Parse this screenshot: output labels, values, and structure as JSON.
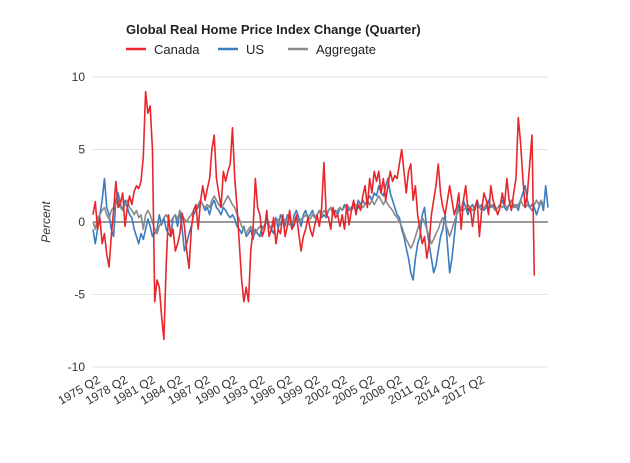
{
  "chart_data": {
    "type": "line",
    "title": "Global Real Home Price Index Change (Quarter)",
    "ylabel": "Percent",
    "xlabel": "",
    "ylim": [
      -10,
      10
    ],
    "yticks": [
      10,
      5,
      0,
      -5,
      -10
    ],
    "grid": true,
    "legend_position": "top-left",
    "x_start": "1975 Q2",
    "x_end": "2017 Q4",
    "xtick_labels": [
      "1975 Q2",
      "1978 Q2",
      "1981 Q2",
      "1984 Q2",
      "1987 Q2",
      "1990 Q2",
      "1993 Q2",
      "1996 Q2",
      "1999 Q2",
      "2002 Q2",
      "2005 Q2",
      "2008 Q2",
      "2011 Q2",
      "2014 Q2",
      "2017 Q2"
    ],
    "series": [
      {
        "name": "Canada",
        "color": "#e8262b",
        "values": [
          0.5,
          1.4,
          -0.5,
          0.3,
          -1.5,
          -0.8,
          -2.2,
          -3.1,
          -1.0,
          0.8,
          2.8,
          1.0,
          1.3,
          2.0,
          -0.3,
          1.0,
          1.8,
          1.2,
          2.1,
          2.5,
          2.3,
          2.8,
          4.5,
          9.0,
          7.5,
          8.0,
          5.0,
          -5.5,
          -4.0,
          -4.5,
          -6.5,
          -8.1,
          -3.0,
          0.5,
          -1.0,
          -0.5,
          -2.0,
          -1.5,
          -0.8,
          0.6,
          -0.3,
          -2.0,
          -3.2,
          -0.5,
          0.8,
          1.2,
          -0.5,
          1.4,
          2.5,
          1.5,
          2.3,
          3.0,
          5.0,
          6.0,
          3.0,
          2.0,
          1.0,
          3.5,
          2.8,
          3.5,
          4.0,
          6.5,
          3.0,
          1.0,
          -1.5,
          -4.0,
          -5.5,
          -4.5,
          -5.5,
          -2.0,
          -0.5,
          3.0,
          1.0,
          0.5,
          -1.0,
          -0.5,
          0.8,
          -1.0,
          -0.5,
          0.3,
          -1.5,
          -0.5,
          -0.8,
          0.5,
          -1.0,
          -0.3,
          0.8,
          -0.5,
          -0.2,
          0.5,
          -0.8,
          -2.0,
          -1.0,
          -0.5,
          0.3,
          -0.5,
          -1.0,
          -0.2,
          0.5,
          -0.3,
          1.0,
          4.1,
          0.5,
          0.3,
          -0.5,
          1.0,
          0.3,
          0.5,
          -0.3,
          0.5,
          -0.5,
          1.2,
          -0.2,
          0.8,
          1.5,
          0.5,
          1.2,
          0.8,
          1.8,
          2.5,
          1.0,
          3.0,
          2.0,
          3.5,
          2.8,
          3.5,
          2.0,
          3.0,
          1.5,
          2.5,
          3.5,
          2.8,
          3.2,
          3.0,
          4.0,
          5.0,
          3.5,
          2.0,
          3.5,
          4.0,
          1.5,
          2.5,
          0.5,
          -0.5,
          -1.5,
          -1.0,
          -2.5,
          -1.5,
          0.5,
          1.5,
          2.5,
          4.0,
          2.0,
          1.0,
          0.5,
          1.5,
          2.5,
          1.5,
          0.5,
          1.0,
          2.0,
          -0.5,
          1.5,
          2.5,
          0.8,
          1.0,
          -0.3,
          1.0,
          1.5,
          -1.0,
          0.8,
          2.0,
          1.5,
          0.5,
          2.5,
          1.5,
          1.0,
          0.5,
          1.0,
          2.0,
          1.2,
          3.0,
          1.5,
          0.8,
          2.0,
          3.0,
          7.2,
          5.5,
          3.0,
          1.0,
          2.0,
          4.0,
          6.0,
          -3.7
        ]
      },
      {
        "name": "US",
        "color": "#3a7cbf",
        "values": [
          -0.5,
          -1.5,
          -0.5,
          0.5,
          1.5,
          3.0,
          1.0,
          0.5,
          -0.5,
          -1.0,
          1.5,
          2.0,
          1.2,
          0.8,
          1.5,
          1.0,
          0.5,
          0.3,
          -0.5,
          -1.0,
          -1.5,
          -0.8,
          -1.2,
          -0.5,
          0.2,
          -0.3,
          -1.0,
          -0.8,
          -0.5,
          0.5,
          -0.2,
          0.3,
          -0.5,
          -0.8,
          -1.0,
          0.3,
          0.5,
          -0.3,
          0.8,
          -0.5,
          -2.0,
          -1.5,
          -0.8,
          -0.3,
          0.5,
          0.8,
          1.0,
          1.5,
          1.2,
          0.8,
          1.0,
          0.5,
          1.2,
          1.5,
          1.0,
          0.8,
          0.5,
          1.0,
          0.8,
          0.5,
          0.3,
          0.5,
          0.2,
          -0.3,
          -0.5,
          -0.8,
          -0.3,
          -1.0,
          -0.8,
          -0.5,
          -1.2,
          -0.5,
          -0.8,
          -1.0,
          -0.3,
          -0.5,
          0.3,
          -0.2,
          -0.5,
          -0.8,
          0.3,
          -0.5,
          0.5,
          0.2,
          -0.3,
          0.5,
          0.3,
          -0.5,
          0.5,
          0.8,
          0.3,
          -0.3,
          0.5,
          0.8,
          0.3,
          0.5,
          0.8,
          0.3,
          0.5,
          0.8,
          0.3,
          0.5,
          0.3,
          0.8,
          1.0,
          0.5,
          0.8,
          0.5,
          1.0,
          0.8,
          1.2,
          1.0,
          0.8,
          1.0,
          1.2,
          0.8,
          1.5,
          1.2,
          1.5,
          1.2,
          1.5,
          1.8,
          1.5,
          2.0,
          1.8,
          2.5,
          2.0,
          1.8,
          2.5,
          3.0,
          2.0,
          1.5,
          1.0,
          0.5,
          0.3,
          -0.5,
          -1.0,
          -1.8,
          -2.5,
          -3.5,
          -4.0,
          -2.5,
          -1.5,
          -1.0,
          0.5,
          1.0,
          -0.5,
          -1.5,
          -2.5,
          -3.5,
          -3.0,
          -2.0,
          -1.0,
          -0.5,
          0.5,
          -1.5,
          -3.5,
          -2.5,
          -1.0,
          0.5,
          1.2,
          0.8,
          1.5,
          1.0,
          0.5,
          1.0,
          1.2,
          0.8,
          1.5,
          1.0,
          1.2,
          0.8,
          1.0,
          1.5,
          1.0,
          1.2,
          0.8,
          1.0,
          1.2,
          1.5,
          1.0,
          0.8,
          1.2,
          1.5,
          1.0,
          1.2,
          0.8,
          1.5,
          2.0,
          2.5,
          1.5,
          1.0,
          1.2,
          1.0,
          0.5,
          1.0,
          1.5,
          0.8,
          2.5,
          1.0
        ]
      },
      {
        "name": "Aggregate",
        "color": "#8a8a8a",
        "values": [
          0.0,
          -0.5,
          0.3,
          0.5,
          0.8,
          1.0,
          0.5,
          0.2,
          0.8,
          1.0,
          1.2,
          1.5,
          1.0,
          0.8,
          1.2,
          1.5,
          1.0,
          0.8,
          0.5,
          0.8,
          0.3,
          0.5,
          -0.5,
          0.5,
          0.8,
          0.5,
          0.0,
          -0.5,
          -0.8,
          -0.3,
          0.0,
          0.3,
          0.5,
          0.2,
          0.0,
          0.3,
          0.5,
          0.2,
          0.8,
          0.5,
          0.2,
          0.0,
          0.3,
          0.5,
          0.8,
          1.0,
          1.2,
          1.5,
          1.2,
          1.0,
          1.2,
          1.0,
          1.5,
          1.8,
          1.5,
          1.2,
          1.0,
          1.2,
          1.5,
          1.8,
          1.5,
          1.2,
          1.0,
          0.5,
          0.2,
          -0.3,
          -0.5,
          -0.8,
          -0.5,
          -0.3,
          -0.5,
          -0.8,
          -0.5,
          -0.3,
          -0.5,
          -0.2,
          0.0,
          -0.3,
          -0.5,
          -0.2,
          0.0,
          0.2,
          -0.2,
          0.0,
          0.2,
          0.0,
          -0.2,
          0.0,
          0.2,
          0.3,
          0.0,
          0.2,
          0.3,
          0.5,
          0.3,
          0.2,
          0.5,
          0.3,
          0.5,
          0.8,
          0.5,
          0.8,
          0.6,
          0.8,
          1.0,
          0.8,
          0.6,
          0.8,
          1.0,
          0.8,
          1.0,
          1.2,
          1.0,
          0.8,
          1.0,
          1.2,
          1.0,
          1.2,
          1.0,
          1.2,
          1.5,
          1.2,
          1.5,
          1.2,
          1.5,
          1.8,
          1.5,
          1.2,
          1.5,
          1.2,
          1.0,
          0.8,
          0.5,
          0.3,
          0.0,
          -0.3,
          -0.8,
          -1.2,
          -1.5,
          -1.8,
          -1.5,
          -1.0,
          -0.5,
          0.0,
          0.3,
          0.0,
          -0.5,
          -1.0,
          -1.5,
          -1.2,
          -0.8,
          -0.5,
          0.0,
          0.3,
          0.0,
          -0.5,
          -1.0,
          -0.5,
          0.0,
          0.5,
          0.8,
          1.0,
          0.8,
          1.0,
          1.2,
          1.0,
          0.8,
          1.0,
          1.2,
          1.0,
          0.8,
          1.0,
          1.2,
          1.0,
          1.2,
          1.0,
          0.8,
          1.0,
          1.2,
          1.0,
          1.2,
          1.0,
          1.2,
          1.5,
          1.2,
          1.0,
          1.2,
          1.5,
          1.2,
          1.0,
          1.2,
          1.0,
          0.8,
          1.2,
          1.5,
          1.2,
          1.5,
          1.2
        ]
      }
    ]
  }
}
